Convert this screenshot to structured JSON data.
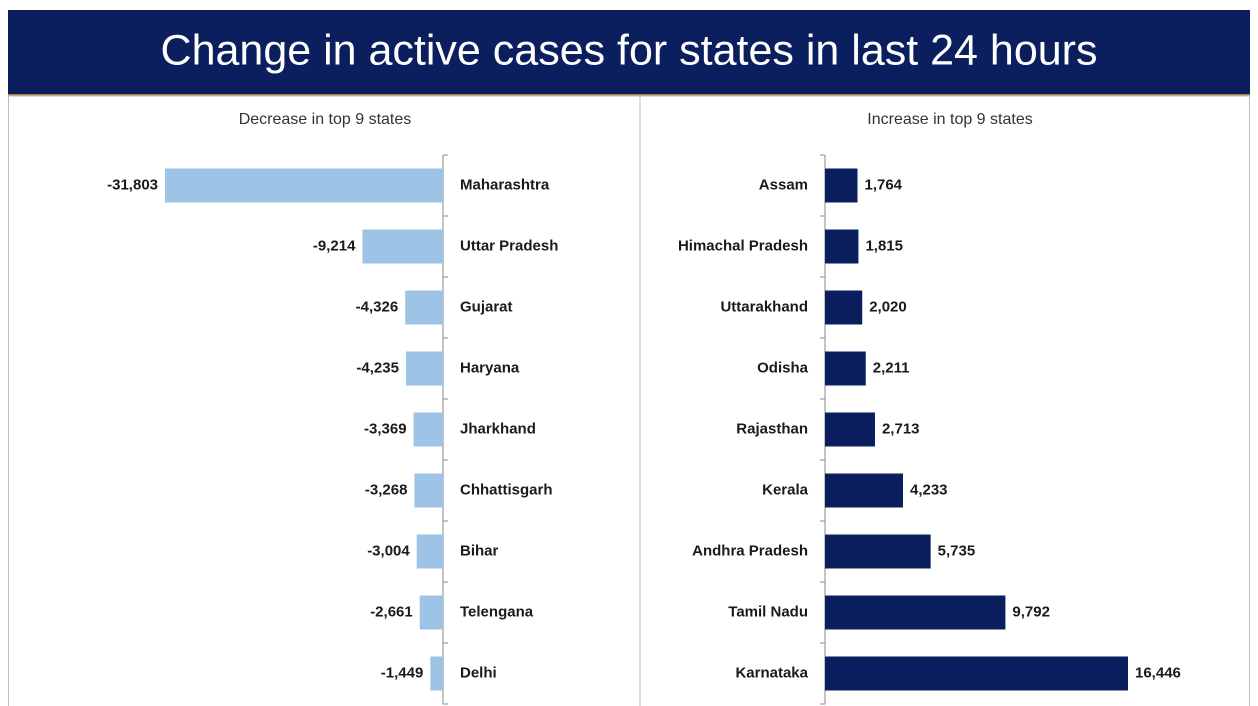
{
  "title": "Change in active cases for states in last 24 hours",
  "chart_data": [
    {
      "type": "bar",
      "orientation": "horizontal",
      "title": "Decrease in top 9 states",
      "color": "#9dc3e6",
      "categories": [
        "Maharashtra",
        "Uttar Pradesh",
        "Gujarat",
        "Haryana",
        "Jharkhand",
        "Chhattisgarh",
        "Bihar",
        "Telengana",
        "Delhi"
      ],
      "values": [
        -31803,
        -9214,
        -4326,
        -4235,
        -3369,
        -3268,
        -3004,
        -2661,
        -1449
      ],
      "value_labels": [
        "-31,803",
        "-9,214",
        "-4,326",
        "-4,235",
        "-3,369",
        "-3,268",
        "-3,004",
        "-2,661",
        "-1,449"
      ]
    },
    {
      "type": "bar",
      "orientation": "horizontal",
      "title": "Increase in top 9 states",
      "color": "#0b1f5e",
      "categories": [
        "Assam",
        "Himachal Pradesh",
        "Uttarakhand",
        "Odisha",
        "Rajasthan",
        "Kerala",
        "Andhra Pradesh",
        "Tamil Nadu",
        "Karnataka"
      ],
      "values": [
        1764,
        1815,
        2020,
        2211,
        2713,
        4233,
        5735,
        9792,
        16446
      ],
      "value_labels": [
        "1,764",
        "1,815",
        "2,020",
        "2,211",
        "2,713",
        "4,233",
        "5,735",
        "9,792",
        "16,446"
      ]
    }
  ]
}
